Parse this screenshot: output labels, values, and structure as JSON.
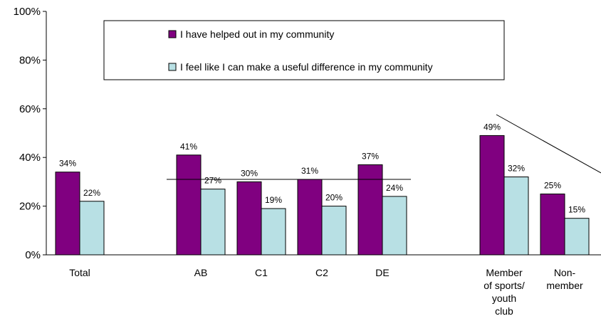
{
  "chart_data": {
    "type": "bar",
    "categories": [
      "Total",
      "AB",
      "C1",
      "C2",
      "DE",
      "Member of sports/ youth club",
      "Non-member"
    ],
    "category_lines": [
      [
        "Total"
      ],
      [
        "AB"
      ],
      [
        "C1"
      ],
      [
        "C2"
      ],
      [
        "DE"
      ],
      [
        "Member",
        "of sports/",
        "youth",
        "club"
      ],
      [
        "Non-",
        "member"
      ]
    ],
    "series": [
      {
        "name": "I have helped out in my community",
        "color": "#800080",
        "values": [
          34,
          41,
          30,
          31,
          37,
          49,
          25
        ],
        "labels": [
          "34%",
          "41%",
          "30%",
          "31%",
          "37%",
          "49%",
          "25%"
        ]
      },
      {
        "name": "I feel like I can make a useful difference in my community",
        "color": "#b8e0e4",
        "values": [
          22,
          27,
          19,
          20,
          24,
          32,
          15
        ],
        "labels": [
          "22%",
          "27%",
          "19%",
          "20%",
          "24%",
          "32%",
          "15%"
        ]
      }
    ],
    "yticks": [
      "0%",
      "20%",
      "40%",
      "60%",
      "80%",
      "100%"
    ],
    "ylim": [
      0,
      100
    ],
    "title": "",
    "xlabel": "",
    "ylabel": "",
    "legend_position": "top-center",
    "grid": false
  }
}
